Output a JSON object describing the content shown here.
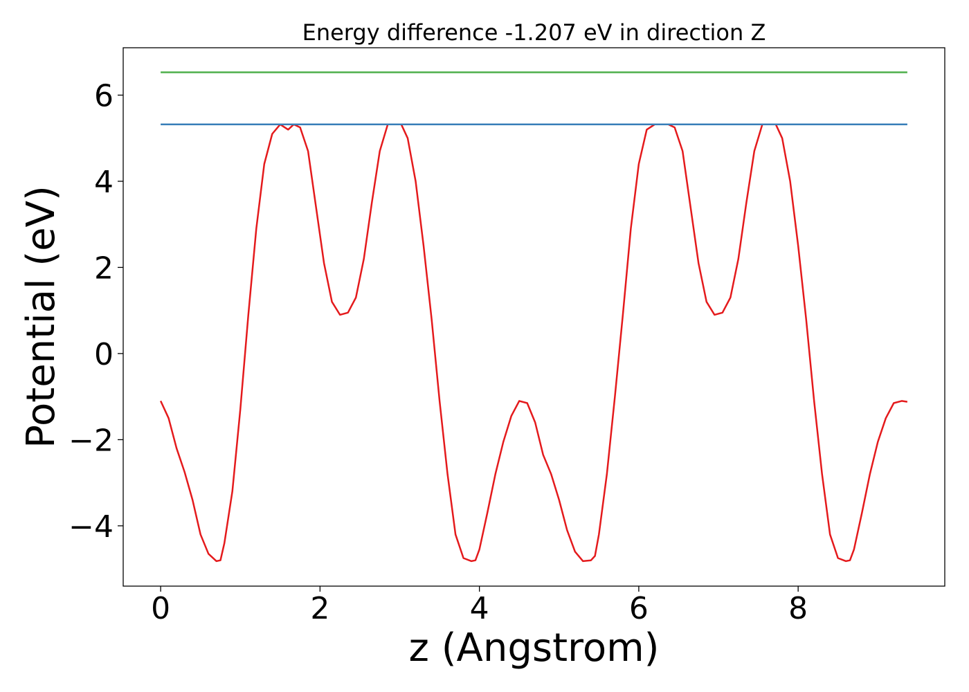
{
  "chart_data": {
    "type": "line",
    "title": "Energy difference -1.207 eV in direction Z",
    "xlabel": "z (Angstrom)",
    "ylabel": "Potential (eV)",
    "xlim": [
      -0.47,
      9.84
    ],
    "ylim": [
      -5.4,
      7.1
    ],
    "xticks": [
      0,
      2,
      4,
      6,
      8
    ],
    "xtick_labels": [
      "0",
      "2",
      "4",
      "6",
      "8"
    ],
    "yticks": [
      -4,
      -2,
      0,
      2,
      4,
      6
    ],
    "ytick_labels": [
      "−4",
      "−2",
      "0",
      "2",
      "4",
      "6"
    ],
    "grid": false,
    "series": [
      {
        "color": "#e41a1c",
        "x": [
          0.0,
          0.1,
          0.2,
          0.3,
          0.4,
          0.5,
          0.6,
          0.7,
          0.75,
          0.8,
          0.9,
          1.0,
          1.1,
          1.2,
          1.3,
          1.4,
          1.5,
          1.6,
          1.67,
          1.75,
          1.85,
          1.95,
          2.05,
          2.15,
          2.25,
          2.35,
          2.45,
          2.55,
          2.65,
          2.75,
          2.85,
          2.95,
          3.02,
          3.1,
          3.2,
          3.3,
          3.4,
          3.5,
          3.6,
          3.7,
          3.8,
          3.9,
          3.95,
          4.0,
          4.1,
          4.2,
          4.3,
          4.4,
          4.5,
          4.6,
          4.7,
          4.8,
          4.9,
          5.0,
          5.1,
          5.2,
          5.3,
          5.4,
          5.45,
          5.5,
          5.6,
          5.7,
          5.8,
          5.9,
          6.0,
          6.1,
          6.2,
          6.3,
          6.37,
          6.45,
          6.55,
          6.65,
          6.75,
          6.85,
          6.95,
          7.05,
          7.15,
          7.25,
          7.35,
          7.45,
          7.55,
          7.65,
          7.72,
          7.8,
          7.9,
          8.0,
          8.1,
          8.2,
          8.3,
          8.4,
          8.5,
          8.6,
          8.65,
          8.7,
          8.8,
          8.9,
          9.0,
          9.1,
          9.2,
          9.3,
          9.37
        ],
        "y": [
          -1.1,
          -1.5,
          -2.2,
          -2.75,
          -3.4,
          -4.2,
          -4.65,
          -4.82,
          -4.8,
          -4.4,
          -3.2,
          -1.3,
          0.9,
          2.9,
          4.4,
          5.1,
          5.32,
          5.2,
          5.32,
          5.25,
          4.7,
          3.4,
          2.1,
          1.2,
          0.9,
          0.95,
          1.3,
          2.2,
          3.5,
          4.7,
          5.32,
          5.32,
          5.32,
          5.0,
          4.0,
          2.5,
          0.8,
          -1.1,
          -2.8,
          -4.2,
          -4.75,
          -4.82,
          -4.8,
          -4.55,
          -3.7,
          -2.8,
          -2.05,
          -1.45,
          -1.1,
          -1.15,
          -1.6,
          -2.35,
          -2.8,
          -3.4,
          -4.1,
          -4.6,
          -4.82,
          -4.8,
          -4.7,
          -4.2,
          -2.8,
          -1.0,
          0.9,
          2.9,
          4.4,
          5.2,
          5.32,
          5.32,
          5.32,
          5.25,
          4.7,
          3.4,
          2.1,
          1.2,
          0.9,
          0.95,
          1.3,
          2.2,
          3.5,
          4.7,
          5.32,
          5.32,
          5.32,
          5.0,
          4.0,
          2.5,
          0.8,
          -1.1,
          -2.8,
          -4.2,
          -4.75,
          -4.82,
          -4.8,
          -4.55,
          -3.7,
          -2.8,
          -2.05,
          -1.5,
          -1.15,
          -1.1,
          -1.12
        ]
      },
      {
        "color": "#377eb8",
        "x": [
          0.0,
          9.37
        ],
        "y": [
          5.32,
          5.32
        ]
      },
      {
        "color": "#4daf4a",
        "x": [
          0.0,
          9.37
        ],
        "y": [
          6.53,
          6.53
        ]
      }
    ]
  }
}
